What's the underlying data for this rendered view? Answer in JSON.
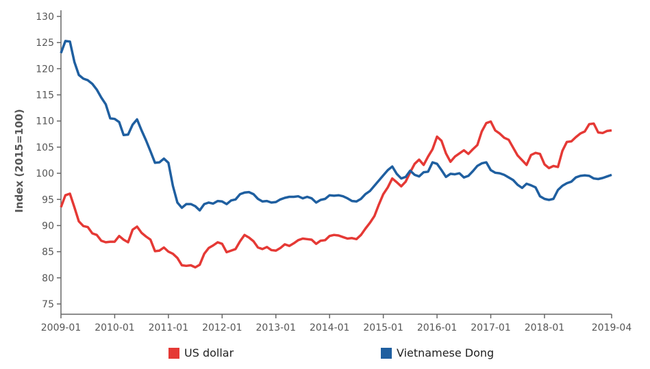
{
  "chart_data": {
    "type": "line",
    "title": "",
    "xlabel": "",
    "ylabel": "Index (2015=100)",
    "ylim": [
      75,
      130
    ],
    "yticks": [
      75,
      80,
      85,
      90,
      95,
      100,
      105,
      110,
      115,
      120,
      125,
      130
    ],
    "xlim": [
      "2009-01",
      "2019-04"
    ],
    "xticks": [
      "2009-01",
      "2010-01",
      "2011-01",
      "2012-01",
      "2013-01",
      "2014-01",
      "2015-01",
      "2016-01",
      "2017-01",
      "2018-01",
      "2019-04"
    ],
    "grid": false,
    "legend_position": "bottom",
    "x_start": "2009-01",
    "x_frequency": "monthly",
    "series": [
      {
        "name": "US dollar",
        "color": "#e53935",
        "values": [
          93.5,
          95.8,
          96.1,
          93.5,
          90.8,
          89.9,
          89.7,
          88.5,
          88.2,
          87.1,
          86.8,
          86.9,
          86.9,
          88.0,
          87.3,
          86.8,
          89.2,
          89.8,
          88.6,
          87.9,
          87.3,
          85.1,
          85.2,
          85.8,
          85.0,
          84.6,
          83.8,
          82.4,
          82.3,
          82.4,
          82.0,
          82.5,
          84.6,
          85.7,
          86.2,
          86.8,
          86.5,
          84.9,
          85.2,
          85.5,
          87.0,
          88.2,
          87.7,
          87.0,
          85.8,
          85.5,
          85.9,
          85.3,
          85.2,
          85.7,
          86.4,
          86.1,
          86.6,
          87.2,
          87.5,
          87.4,
          87.3,
          86.5,
          87.1,
          87.2,
          88.0,
          88.2,
          88.1,
          87.8,
          87.5,
          87.6,
          87.4,
          88.2,
          89.4,
          90.5,
          91.8,
          94.0,
          96.0,
          97.3,
          99.0,
          98.3,
          97.5,
          98.4,
          100.2,
          101.8,
          102.6,
          101.6,
          103.2,
          104.6,
          107.0,
          106.2,
          103.8,
          102.2,
          103.2,
          103.8,
          104.4,
          103.7,
          104.6,
          105.4,
          108.0,
          109.6,
          109.9,
          108.2,
          107.6,
          106.8,
          106.4,
          104.9,
          103.4,
          102.5,
          101.6,
          103.5,
          103.9,
          103.7,
          101.7,
          101.0,
          101.4,
          101.2,
          104.3,
          106.0,
          106.1,
          106.9,
          107.6,
          108.0,
          109.4,
          109.5,
          107.8,
          107.7,
          108.1,
          108.2
        ]
      },
      {
        "name": "Vietnamese Dong",
        "color": "#1f5fa0",
        "values": [
          123.0,
          125.3,
          125.2,
          121.3,
          118.8,
          118.1,
          117.8,
          117.1,
          116.0,
          114.5,
          113.2,
          110.5,
          110.4,
          109.8,
          107.3,
          107.4,
          109.3,
          110.3,
          108.2,
          106.3,
          104.2,
          102.0,
          102.1,
          102.8,
          102.0,
          97.6,
          94.4,
          93.4,
          94.1,
          94.1,
          93.7,
          92.9,
          94.1,
          94.4,
          94.2,
          94.7,
          94.6,
          94.1,
          94.8,
          95.0,
          96.0,
          96.3,
          96.4,
          96.0,
          95.1,
          94.6,
          94.7,
          94.4,
          94.5,
          95.0,
          95.3,
          95.5,
          95.5,
          95.6,
          95.2,
          95.5,
          95.2,
          94.4,
          94.9,
          95.1,
          95.8,
          95.7,
          95.8,
          95.6,
          95.2,
          94.7,
          94.6,
          95.1,
          96.0,
          96.6,
          97.6,
          98.6,
          99.6,
          100.6,
          101.3,
          99.9,
          99.0,
          99.3,
          100.5,
          99.7,
          99.4,
          100.2,
          100.3,
          102.1,
          101.8,
          100.6,
          99.3,
          99.9,
          99.8,
          100.0,
          99.2,
          99.5,
          100.4,
          101.4,
          101.9,
          102.1,
          100.6,
          100.1,
          100.0,
          99.7,
          99.2,
          98.7,
          97.8,
          97.2,
          98.0,
          97.7,
          97.3,
          95.6,
          95.1,
          94.9,
          95.1,
          96.8,
          97.6,
          98.1,
          98.4,
          99.2,
          99.5,
          99.6,
          99.5,
          99.0,
          98.9,
          99.1,
          99.4,
          99.7
        ]
      }
    ]
  }
}
